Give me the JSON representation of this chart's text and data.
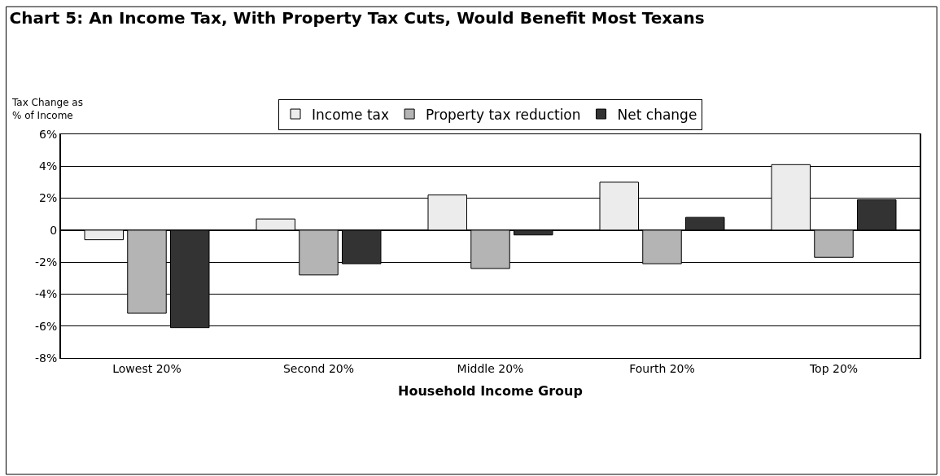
{
  "chart_data": {
    "type": "bar",
    "title": "Chart 5: An Income Tax, With Property Tax Cuts, Would Benefit Most Texans",
    "xlabel": "Household Income Group",
    "ylabel": "Tax Change as\n% of Income",
    "categories": [
      "Lowest 20%",
      "Second 20%",
      "Middle 20%",
      "Fourth 20%",
      "Top 20%"
    ],
    "series": [
      {
        "name": "Income tax",
        "color": "#ececec",
        "values": [
          -0.6,
          0.7,
          2.2,
          3.0,
          4.1
        ]
      },
      {
        "name": "Property tax reduction",
        "color": "#b4b4b4",
        "values": [
          -5.2,
          -2.8,
          -2.4,
          -2.1,
          -1.7
        ]
      },
      {
        "name": "Net change",
        "color": "#333333",
        "values": [
          -6.1,
          -2.1,
          -0.3,
          0.8,
          1.9
        ]
      }
    ],
    "ylim": [
      -8,
      6
    ],
    "yticks": [
      {
        "value": -8,
        "label": "-8%"
      },
      {
        "value": -6,
        "label": "-6%"
      },
      {
        "value": -4,
        "label": "-4%"
      },
      {
        "value": -2,
        "label": "-2%"
      },
      {
        "value": 0,
        "label": "0"
      },
      {
        "value": 2,
        "label": "2%"
      },
      {
        "value": 4,
        "label": "4%"
      },
      {
        "value": 6,
        "label": "6%"
      }
    ],
    "grid": "y",
    "legend": "top"
  }
}
